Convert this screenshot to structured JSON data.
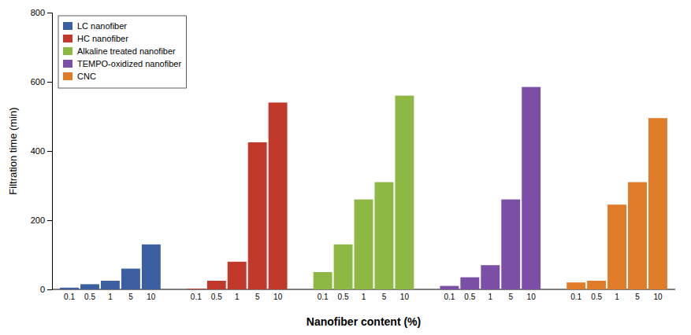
{
  "chart_data": {
    "type": "bar",
    "xlabel": "Nanofiber content (%)",
    "ylabel": "Filtration time (min)",
    "categories": [
      "0.1",
      "0.5",
      "1",
      "5",
      "10"
    ],
    "series": [
      {
        "name": "LC nanofiber",
        "color": "#3b5fa0",
        "values": [
          5,
          15,
          25,
          60,
          130
        ]
      },
      {
        "name": "HC nanofiber",
        "color": "#c0392b",
        "values": [
          2,
          25,
          80,
          425,
          540
        ]
      },
      {
        "name": "Alkaline treated nanofiber",
        "color": "#8db843",
        "values": [
          50,
          130,
          260,
          310,
          560
        ]
      },
      {
        "name": "TEMPO-oxidized nanofiber",
        "color": "#7b4fa6",
        "values": [
          10,
          35,
          70,
          260,
          585
        ]
      },
      {
        "name": "CNC",
        "color": "#e07b2a",
        "values": [
          20,
          25,
          245,
          310,
          495
        ]
      }
    ],
    "ylim": [
      0,
      800
    ],
    "yticks": [
      0,
      200,
      400,
      600,
      800
    ],
    "legend": "upper left"
  }
}
